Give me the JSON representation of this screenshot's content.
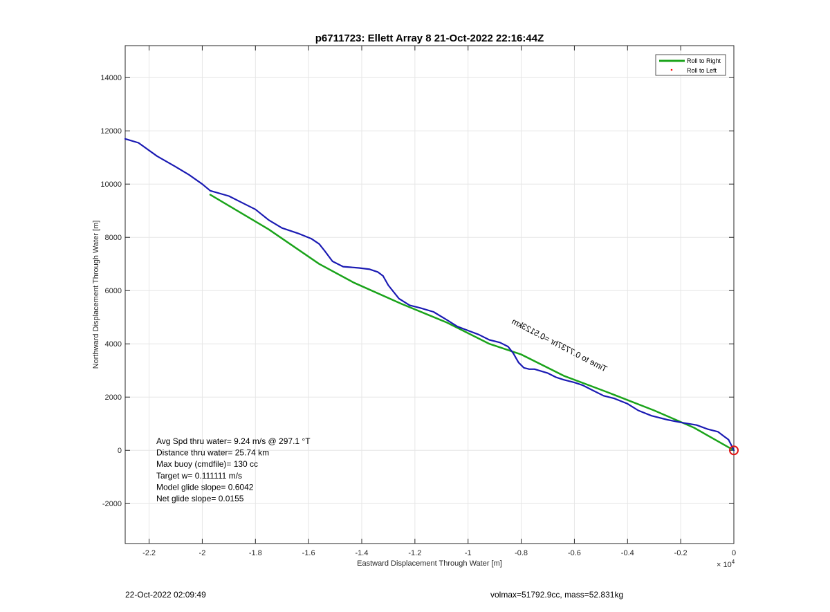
{
  "chart_data": {
    "type": "line",
    "title": "p6711723: Ellett Array 8 21-Oct-2022 22:16:44Z",
    "xlabel": "Eastward Displacement Through Water [m]",
    "ylabel": "Northward Displacement Through Water [m]",
    "x_exponent_label": "× 10",
    "x_exponent_power": "4",
    "xlim": [
      -22900,
      0
    ],
    "ylim": [
      -3500,
      15200
    ],
    "grid": true,
    "x_ticks": [
      -22000,
      -20000,
      -18000,
      -16000,
      -14000,
      -12000,
      -10000,
      -8000,
      -6000,
      -4000,
      -2000,
      0
    ],
    "x_tick_labels": [
      "-2.2",
      "-2",
      "-1.8",
      "-1.6",
      "-1.4",
      "-1.2",
      "-1",
      "-0.8",
      "-0.6",
      "-0.4",
      "-0.2",
      "0"
    ],
    "y_ticks": [
      -2000,
      0,
      2000,
      4000,
      6000,
      8000,
      10000,
      12000,
      14000
    ],
    "y_tick_labels": [
      "-2000",
      "0",
      "2000",
      "4000",
      "6000",
      "8000",
      "10000",
      "12000",
      "14000"
    ],
    "legend": {
      "placement": "top-right",
      "entries": [
        "Roll to Right",
        "Roll to Left"
      ]
    },
    "series": [
      {
        "name": "Roll to Right",
        "color": "#1aa31a",
        "x": [
          -19700,
          -17500,
          -15600,
          -14300,
          -12500,
          -10800,
          -9200,
          -8000,
          -6400,
          -4800,
          -3000,
          -1500,
          0
        ],
        "y": [
          9600,
          8300,
          7000,
          6300,
          5500,
          4800,
          4000,
          3600,
          2800,
          2200,
          1500,
          850,
          0
        ]
      },
      {
        "name": "track",
        "color": "#1a1ab3",
        "x": [
          -22900,
          -22400,
          -21700,
          -21000,
          -20500,
          -20000,
          -19700,
          -19000,
          -18500,
          -18000,
          -17500,
          -17000,
          -16400,
          -15900,
          -15600,
          -15400,
          -15100,
          -14700,
          -14100,
          -13700,
          -13400,
          -13200,
          -13000,
          -12600,
          -12200,
          -11800,
          -11300,
          -10800,
          -10400,
          -10000,
          -9600,
          -9200,
          -8800,
          -8500,
          -8300,
          -8100,
          -7900,
          -7700,
          -7500,
          -7000,
          -6700,
          -6400,
          -6000,
          -5700,
          -5300,
          -4900,
          -4500,
          -4000,
          -3600,
          -3100,
          -2500,
          -2000,
          -1400,
          -1000,
          -600,
          -400,
          -200,
          -100,
          0
        ],
        "y": [
          11700,
          11550,
          11050,
          10650,
          10350,
          10000,
          9750,
          9550,
          9300,
          9050,
          8650,
          8350,
          8150,
          7950,
          7750,
          7500,
          7100,
          6900,
          6850,
          6800,
          6700,
          6550,
          6200,
          5700,
          5450,
          5350,
          5200,
          4900,
          4650,
          4500,
          4350,
          4150,
          4050,
          3900,
          3650,
          3300,
          3100,
          3050,
          3050,
          2900,
          2750,
          2650,
          2550,
          2450,
          2250,
          2050,
          1950,
          1750,
          1500,
          1300,
          1150,
          1050,
          950,
          800,
          700,
          550,
          400,
          200,
          0
        ]
      },
      {
        "name": "Roll to Left",
        "color": "#ff0000",
        "x": [],
        "y": []
      }
    ],
    "end_marker": {
      "x": 0,
      "y": 0,
      "color": "#e01515"
    },
    "track_annotation": "Time to 0.7737hr =0.5123km",
    "annotations": [
      "Avg Spd thru water=  9.24 m/s @ 297.1 °T",
      "Distance thru water= 25.74 km",
      "Max buoy (cmdfile)= 130 cc",
      "Target w= 0.111111 m/s",
      "Model glide slope= 0.6042",
      "Net glide slope= 0.0155"
    ]
  },
  "footer": {
    "left": "22-Oct-2022 02:09:49",
    "right": "volmax=51792.9cc, mass=52.831kg"
  }
}
